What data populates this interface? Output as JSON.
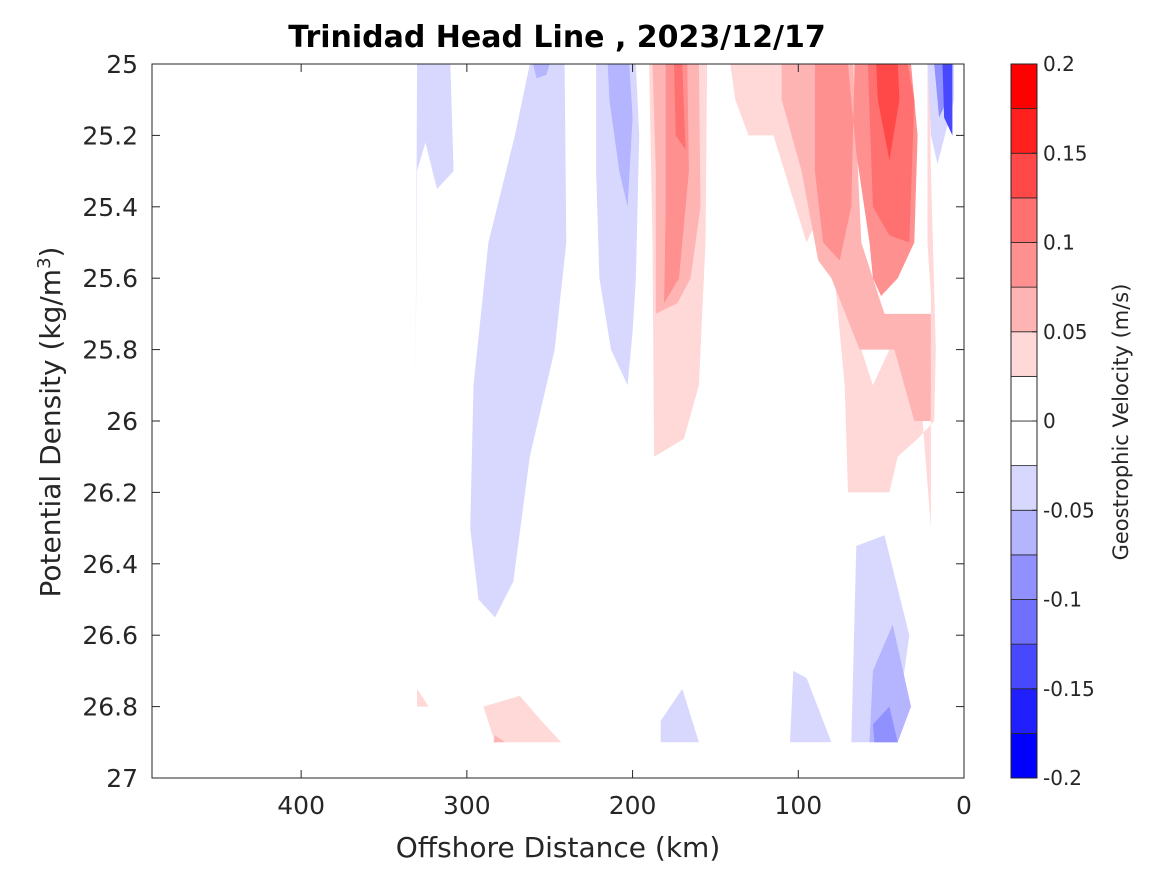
{
  "chart_data": {
    "type": "contour",
    "title": "Trinidad Head Line , 2023/12/17",
    "xlabel": "Offshore Distance (km)",
    "ylabel_main": "Potential Density (kg/m",
    "ylabel_sup": "3",
    "ylabel_close": ")",
    "xlim": [
      490,
      0
    ],
    "x_reversed": true,
    "ylim": [
      25,
      27
    ],
    "y_reversed": true,
    "xticks": [
      400,
      300,
      200,
      100,
      0
    ],
    "xtick_labels": [
      "400",
      "300",
      "200",
      "100",
      "0"
    ],
    "yticks": [
      25,
      25.2,
      25.4,
      25.6,
      25.8,
      26,
      26.2,
      26.4,
      26.6,
      26.8,
      27
    ],
    "ytick_labels": [
      "25",
      "25.2",
      "25.4",
      "25.6",
      "25.8",
      "26",
      "26.2",
      "26.4",
      "26.6",
      "26.8",
      "27"
    ],
    "colorbar": {
      "label": "Geostrophic Velocity (m/s)",
      "range": [
        -0.2,
        0.2
      ],
      "levels": [
        -0.2,
        -0.175,
        -0.15,
        -0.125,
        -0.1,
        -0.075,
        -0.05,
        -0.025,
        0,
        0.025,
        0.05,
        0.075,
        0.1,
        0.125,
        0.15,
        0.175,
        0.2
      ],
      "tick_values": [
        0.2,
        0.15,
        0.1,
        0.05,
        0,
        -0.05,
        -0.1,
        -0.15,
        -0.2
      ],
      "tick_labels": [
        "0.2",
        "0.15",
        "0.1",
        "0.05",
        "0",
        "-0.05",
        "-0.1",
        "-0.15",
        "-0.2"
      ],
      "colors": [
        "#0000ff",
        "#2020ff",
        "#4848ff",
        "#7070ff",
        "#9090ff",
        "#b4b4ff",
        "#d8d8ff",
        "#ffffff",
        "#ffffff",
        "#ffd8d8",
        "#ffb4b4",
        "#ff9090",
        "#ff7070",
        "#ff4848",
        "#ff2020",
        "#ff0000"
      ]
    },
    "regions": [
      {
        "level": -0.05,
        "color": "#d8d8ff",
        "points": [
          [
            330,
            25
          ],
          [
            310,
            25
          ],
          [
            308,
            25.3
          ],
          [
            318,
            25.35
          ],
          [
            325,
            25.22
          ],
          [
            330,
            25.3
          ],
          [
            331,
            25.9
          ]
        ]
      },
      {
        "level": -0.05,
        "color": "#d8d8ff",
        "points": [
          [
            262,
            25
          ],
          [
            241,
            25
          ],
          [
            240,
            25.5
          ],
          [
            247,
            25.8
          ],
          [
            262,
            26.1
          ],
          [
            272,
            26.45
          ],
          [
            283,
            26.55
          ],
          [
            293,
            26.5
          ],
          [
            298,
            26.3
          ],
          [
            296,
            25.9
          ],
          [
            287,
            25.5
          ],
          [
            271,
            25.2
          ]
        ]
      },
      {
        "level": -0.075,
        "color": "#b4b4ff",
        "points": [
          [
            260,
            25
          ],
          [
            250,
            25
          ],
          [
            252,
            25.03
          ],
          [
            258,
            25.04
          ]
        ]
      },
      {
        "level": -0.05,
        "color": "#d8d8ff",
        "points": [
          [
            222,
            25
          ],
          [
            198,
            25
          ],
          [
            196,
            25.2
          ],
          [
            198,
            25.6
          ],
          [
            200,
            25.75
          ],
          [
            203,
            25.9
          ],
          [
            213,
            25.8
          ],
          [
            220,
            25.6
          ],
          [
            222,
            25.3
          ]
        ]
      },
      {
        "level": -0.075,
        "color": "#b4b4ff",
        "points": [
          [
            215,
            25
          ],
          [
            202,
            25
          ],
          [
            200,
            25.15
          ],
          [
            203,
            25.4
          ],
          [
            208,
            25.3
          ],
          [
            214,
            25.1
          ]
        ]
      },
      {
        "level": 0.05,
        "color": "#ffd8d8",
        "points": [
          [
            190,
            25
          ],
          [
            155,
            25
          ],
          [
            156,
            25.5
          ],
          [
            160,
            25.9
          ],
          [
            169,
            26.05
          ],
          [
            187,
            26.1
          ],
          [
            188,
            25.5
          ]
        ]
      },
      {
        "level": 0.075,
        "color": "#ffb4b4",
        "points": [
          [
            188,
            25
          ],
          [
            160,
            25
          ],
          [
            159,
            25.4
          ],
          [
            165,
            25.6
          ],
          [
            173,
            25.67
          ],
          [
            186,
            25.7
          ],
          [
            186,
            25.3
          ]
        ]
      },
      {
        "level": 0.1,
        "color": "#ff9090",
        "points": [
          [
            180,
            25
          ],
          [
            167,
            25
          ],
          [
            166,
            25.3
          ],
          [
            172,
            25.6
          ],
          [
            181,
            25.67
          ],
          [
            180,
            25.4
          ]
        ]
      },
      {
        "level": 0.125,
        "color": "#ff7070",
        "points": [
          [
            175,
            25
          ],
          [
            170,
            25
          ],
          [
            169,
            25.12
          ],
          [
            168,
            25.24
          ],
          [
            174,
            25.2
          ]
        ]
      },
      {
        "level": 0.05,
        "color": "#ffd8d8",
        "points": [
          [
            141,
            25
          ],
          [
            65,
            25
          ],
          [
            65,
            25.5
          ],
          [
            62,
            25.8
          ],
          [
            55,
            25.9
          ],
          [
            45,
            25.8
          ],
          [
            30,
            25.7
          ],
          [
            20,
            26.3
          ],
          [
            20,
            25.65
          ],
          [
            22,
            25.5
          ],
          [
            22,
            25
          ],
          [
            21,
            25
          ],
          [
            20,
            25.3
          ],
          [
            17,
            25.8
          ],
          [
            18,
            26.0
          ],
          [
            28,
            26.05
          ],
          [
            40,
            26.1
          ],
          [
            45,
            26.2
          ],
          [
            70,
            26.2
          ],
          [
            72,
            25.9
          ],
          [
            78,
            25.6
          ],
          [
            85,
            25.4
          ],
          [
            95,
            25.5
          ],
          [
            115,
            25.2
          ],
          [
            130,
            25.2
          ],
          [
            138,
            25.1
          ]
        ]
      },
      {
        "level": 0.075,
        "color": "#ffb4b4",
        "points": [
          [
            110,
            25
          ],
          [
            67,
            25
          ],
          [
            62,
            25.5
          ],
          [
            55,
            25.6
          ],
          [
            48,
            25.7
          ],
          [
            38,
            25.7
          ],
          [
            28,
            25.7
          ],
          [
            20,
            25.7
          ],
          [
            20,
            26.0
          ],
          [
            30,
            26.0
          ],
          [
            42,
            25.8
          ],
          [
            52,
            25.8
          ],
          [
            63,
            25.8
          ],
          [
            80,
            25.6
          ],
          [
            88,
            25.55
          ],
          [
            98,
            25.3
          ],
          [
            110,
            25.1
          ]
        ]
      },
      {
        "level": 0.1,
        "color": "#ff9090",
        "points": [
          [
            90,
            25
          ],
          [
            70,
            25
          ],
          [
            65,
            25.25
          ],
          [
            57,
            25.5
          ],
          [
            55,
            25.6
          ],
          [
            50,
            25.65
          ],
          [
            40,
            25.6
          ],
          [
            30,
            25.5
          ],
          [
            28,
            25.2
          ],
          [
            32,
            25
          ],
          [
            66,
            25
          ],
          [
            68,
            25.4
          ],
          [
            75,
            25.55
          ],
          [
            85,
            25.5
          ],
          [
            90,
            25.3
          ]
        ]
      },
      {
        "level": 0.125,
        "color": "#ff7070",
        "points": [
          [
            58,
            25
          ],
          [
            34,
            25
          ],
          [
            30,
            25.1
          ],
          [
            33,
            25.5
          ],
          [
            45,
            25.48
          ],
          [
            55,
            25.4
          ]
        ]
      },
      {
        "level": 0.15,
        "color": "#ff4848",
        "points": [
          [
            53,
            25
          ],
          [
            40,
            25
          ],
          [
            39,
            25.1
          ],
          [
            45,
            25.27
          ],
          [
            52,
            25.1
          ]
        ]
      },
      {
        "level": -0.05,
        "color": "#d8d8ff",
        "points": [
          [
            22,
            25
          ],
          [
            6,
            25
          ],
          [
            6,
            25.1
          ],
          [
            16,
            25.28
          ],
          [
            20,
            25.2
          ]
        ]
      },
      {
        "level": -0.1,
        "color": "#9090ff",
        "points": [
          [
            18,
            25
          ],
          [
            9,
            25
          ],
          [
            10,
            25.1
          ],
          [
            15,
            25.15
          ]
        ]
      },
      {
        "level": -0.15,
        "color": "#4848ff",
        "points": [
          [
            13,
            25
          ],
          [
            7,
            25
          ],
          [
            7,
            25.2
          ],
          [
            12,
            25.15
          ]
        ]
      },
      {
        "level": -0.05,
        "color": "#d8d8ff",
        "points": [
          [
            48,
            26.32
          ],
          [
            65,
            26.35
          ],
          [
            68,
            26.9
          ],
          [
            42,
            26.9
          ],
          [
            33,
            26.6
          ]
        ]
      },
      {
        "level": -0.075,
        "color": "#b4b4ff",
        "points": [
          [
            43,
            26.57
          ],
          [
            55,
            26.7
          ],
          [
            57,
            26.9
          ],
          [
            40,
            26.9
          ],
          [
            32,
            26.8
          ]
        ]
      },
      {
        "level": -0.1,
        "color": "#9090ff",
        "points": [
          [
            45,
            26.8
          ],
          [
            55,
            26.85
          ],
          [
            54,
            26.9
          ],
          [
            40,
            26.9
          ]
        ]
      },
      {
        "level": -0.05,
        "color": "#d8d8ff",
        "points": [
          [
            103,
            26.7
          ],
          [
            95,
            26.72
          ],
          [
            80,
            26.9
          ],
          [
            105,
            26.9
          ]
        ]
      },
      {
        "level": -0.05,
        "color": "#d8d8ff",
        "points": [
          [
            170,
            26.75
          ],
          [
            160,
            26.9
          ],
          [
            183,
            26.9
          ],
          [
            183,
            26.84
          ]
        ]
      },
      {
        "level": 0.05,
        "color": "#ffd8d8",
        "points": [
          [
            290,
            26.8
          ],
          [
            268,
            26.77
          ],
          [
            255,
            26.84
          ],
          [
            243,
            26.9
          ],
          [
            283,
            26.9
          ]
        ]
      },
      {
        "level": 0.075,
        "color": "#ffb4b4",
        "points": [
          [
            283,
            26.88
          ],
          [
            277,
            26.9
          ],
          [
            284,
            26.9
          ]
        ]
      },
      {
        "level": 0.05,
        "color": "#ffd8d8",
        "points": [
          [
            330,
            26.75
          ],
          [
            323,
            26.8
          ],
          [
            330,
            26.8
          ]
        ]
      }
    ]
  }
}
